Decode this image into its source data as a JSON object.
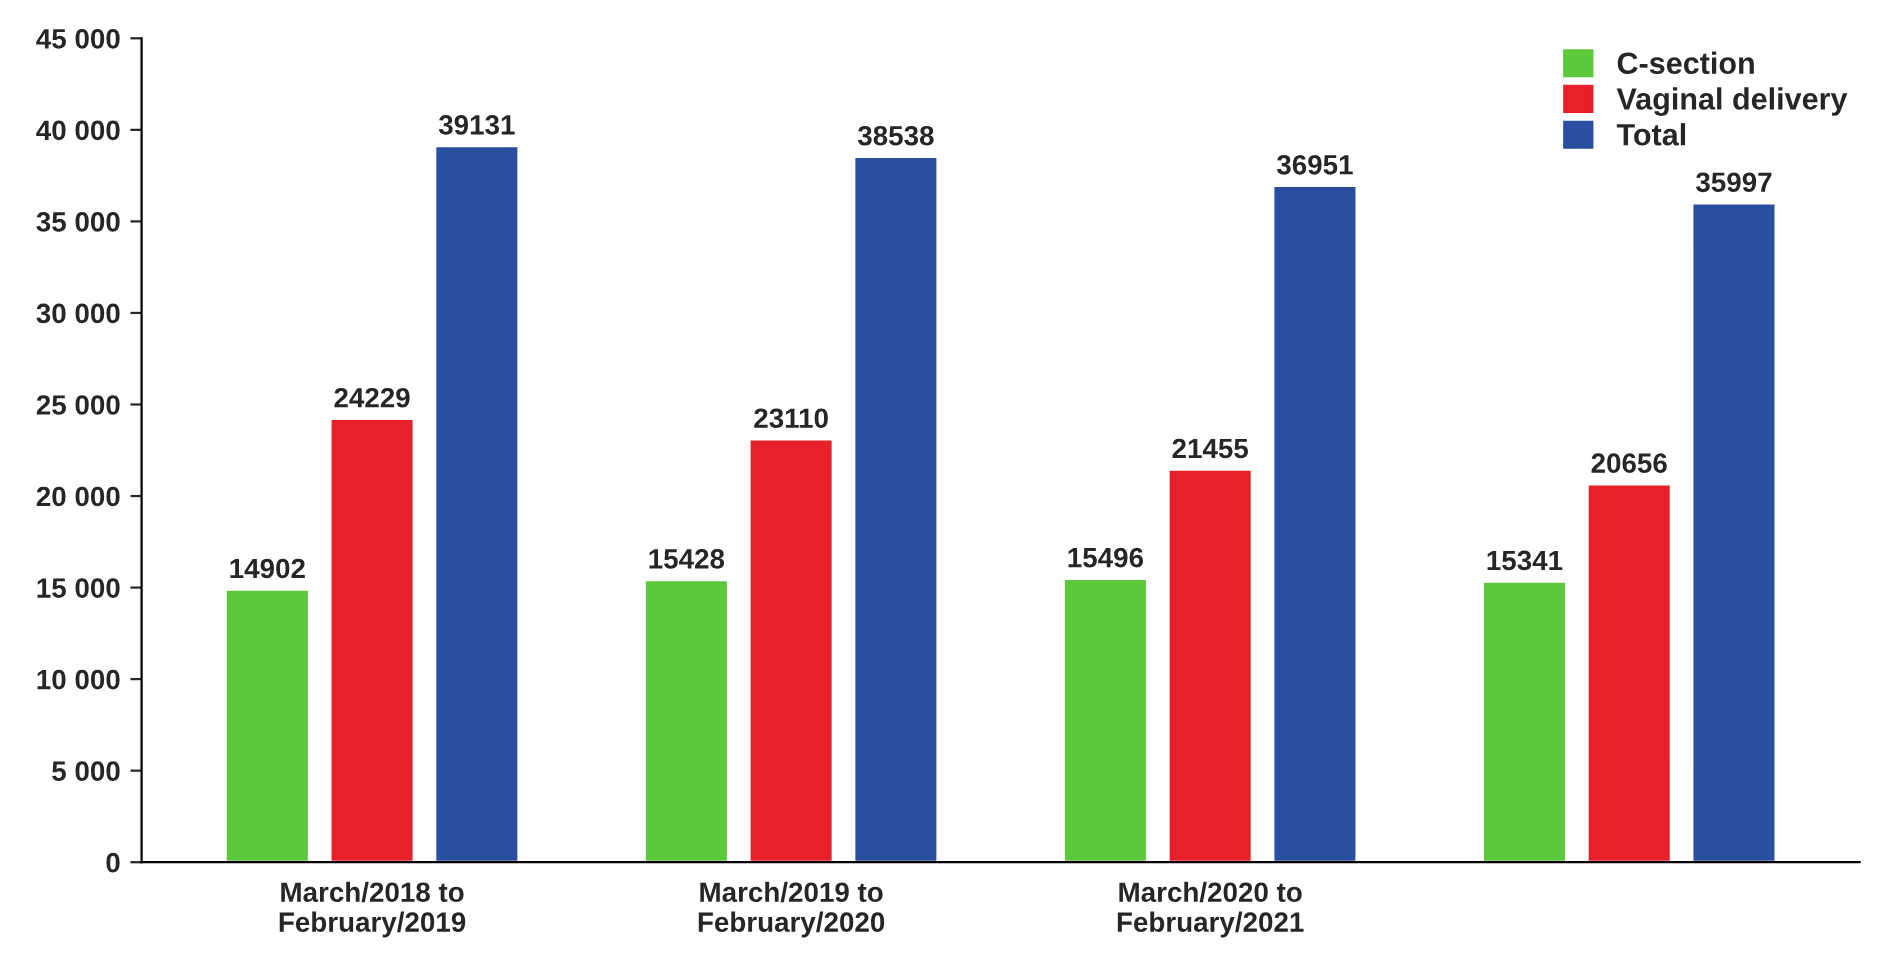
{
  "chart_data": {
    "type": "bar",
    "categories": [
      "March/2018 to\nFebruary/2019",
      "March/2019 to\nFebruary/2020",
      "March/2020 to\nFebruary/2021",
      null
    ],
    "series": [
      {
        "name": "C-section",
        "color": "#5cc83c",
        "values": [
          14902,
          15428,
          15496,
          15341
        ]
      },
      {
        "name": "Vaginal delivery",
        "color": "#e8202a",
        "values": [
          24229,
          23110,
          21455,
          20656
        ]
      },
      {
        "name": "Total",
        "color": "#2a4ea0",
        "values": [
          39131,
          38538,
          36951,
          35997
        ]
      }
    ],
    "ylim": [
      0,
      45000
    ],
    "yticks": [
      0,
      {
        "value": 5000,
        "label": "5 000"
      },
      {
        "value": 10000,
        "label": "10 000"
      },
      {
        "value": 15000,
        "label": "15 000"
      },
      {
        "value": 20000,
        "label": "20 000"
      },
      {
        "value": 25000,
        "label": "25 000"
      },
      {
        "value": 30000,
        "label": "30 000"
      },
      {
        "value": 35000,
        "label": "35 000"
      },
      {
        "value": 40000,
        "label": "40 000"
      },
      {
        "value": 45000,
        "label": "45 000"
      }
    ],
    "data_labels": true,
    "grid": false,
    "legend": "top right"
  }
}
